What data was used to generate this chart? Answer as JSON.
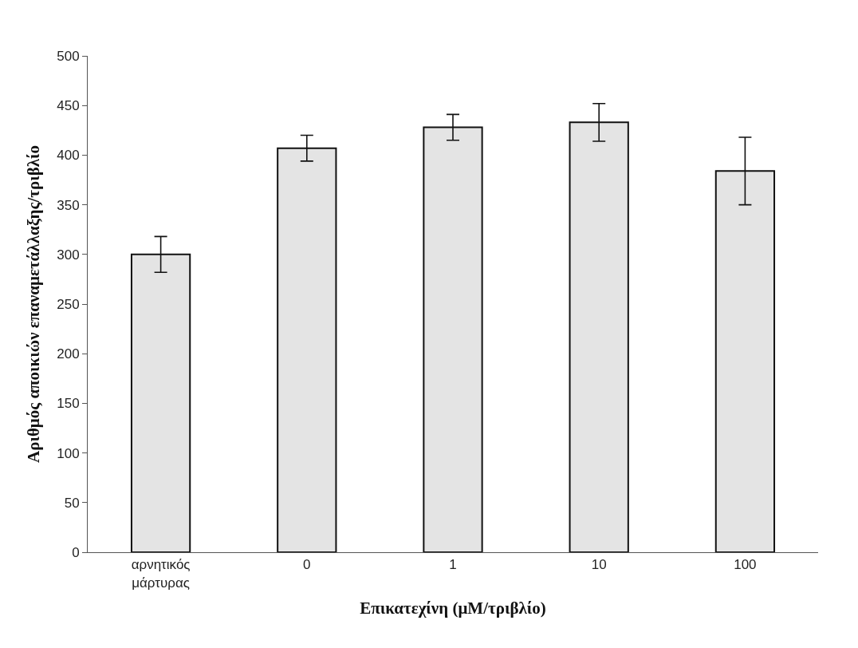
{
  "chart_data": {
    "type": "bar",
    "xlabel": "Επικατεχίνη (μM/τριβλίο)",
    "ylabel": "Αριθμός αποικιών επαναμετάλλαξης/τριβλίο",
    "categories": [
      "αρνητικός\nμάρτυρας",
      "0",
      "1",
      "10",
      "100"
    ],
    "values": [
      300,
      407,
      428,
      433,
      384
    ],
    "errors": [
      18,
      13,
      13,
      19,
      34
    ],
    "color": "#e4e4e4",
    "ylim": [
      0,
      500
    ],
    "yticks": [
      0,
      50,
      100,
      150,
      200,
      250,
      300,
      350,
      400,
      450,
      500
    ]
  }
}
